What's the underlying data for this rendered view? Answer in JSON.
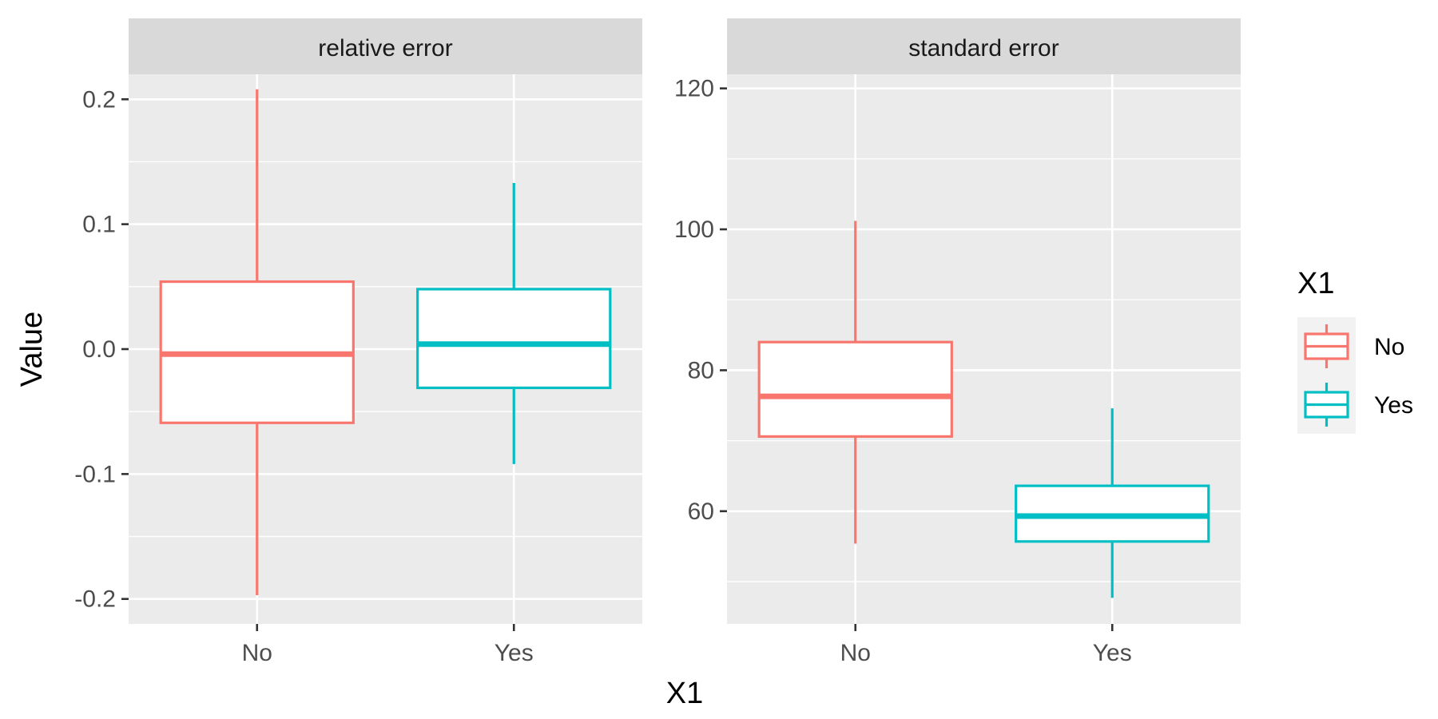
{
  "colors": {
    "No": "#F8766D",
    "Yes": "#00BFC4"
  },
  "chart_data": {
    "type": "boxplot",
    "xlabel": "X1",
    "ylabel": "Value",
    "legend": {
      "title": "X1",
      "position": "right",
      "entries": [
        "No",
        "Yes"
      ]
    },
    "facets": [
      {
        "title": "relative error",
        "ylim": [
          -0.22,
          0.22
        ],
        "yticks": [
          -0.2,
          -0.1,
          0.0,
          0.1,
          0.2
        ],
        "ytick_labels": [
          "-0.2",
          "-0.1",
          "0.0",
          "0.1",
          "0.2"
        ],
        "yminor": [
          -0.15,
          -0.05,
          0.05,
          0.15
        ],
        "categories": [
          "No",
          "Yes"
        ],
        "boxes": [
          {
            "category": "No",
            "whisker_low": -0.197,
            "q1": -0.059,
            "median": -0.004,
            "q3": 0.054,
            "whisker_high": 0.208
          },
          {
            "category": "Yes",
            "whisker_low": -0.092,
            "q1": -0.031,
            "median": 0.004,
            "q3": 0.048,
            "whisker_high": 0.133
          }
        ]
      },
      {
        "title": "standard error",
        "ylim": [
          44,
          122
        ],
        "yticks": [
          60,
          80,
          100,
          120
        ],
        "ytick_labels": [
          "60",
          "80",
          "100",
          "120"
        ],
        "yminor": [
          50,
          70,
          90,
          110
        ],
        "categories": [
          "No",
          "Yes"
        ],
        "boxes": [
          {
            "category": "No",
            "whisker_low": 55.4,
            "q1": 70.6,
            "median": 76.3,
            "q3": 84.0,
            "whisker_high": 101.2
          },
          {
            "category": "Yes",
            "whisker_low": 47.7,
            "q1": 55.7,
            "median": 59.3,
            "q3": 63.6,
            "whisker_high": 74.6
          }
        ]
      }
    ]
  }
}
